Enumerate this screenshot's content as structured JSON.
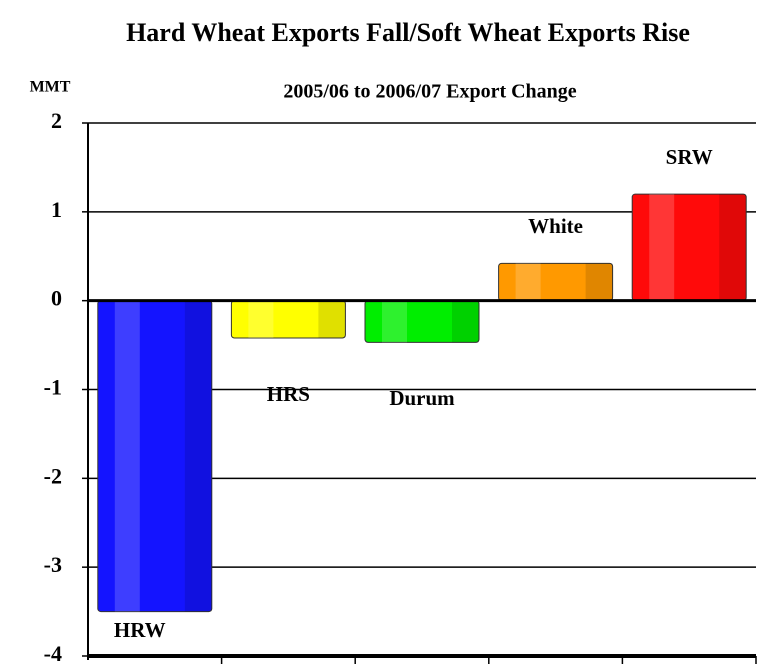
{
  "chart_data": {
    "type": "bar",
    "title": "Hard Wheat Exports Fall/Soft Wheat Exports Rise",
    "subtitle": "2005/06 to 2006/07 Export Change",
    "y_axis_label": "MMT",
    "categories": [
      "HRW",
      "HRS",
      "Durum",
      "White",
      "SRW"
    ],
    "values": [
      -3.5,
      -0.42,
      -0.47,
      0.42,
      1.2
    ],
    "colors": [
      "#1414ff",
      "#ffff00",
      "#00ee00",
      "#ff9900",
      "#ff0a0a"
    ],
    "ylim": [
      -4,
      2
    ],
    "yticks": [
      -4,
      -3,
      -2,
      -1,
      0,
      1,
      2
    ],
    "grid": true
  }
}
